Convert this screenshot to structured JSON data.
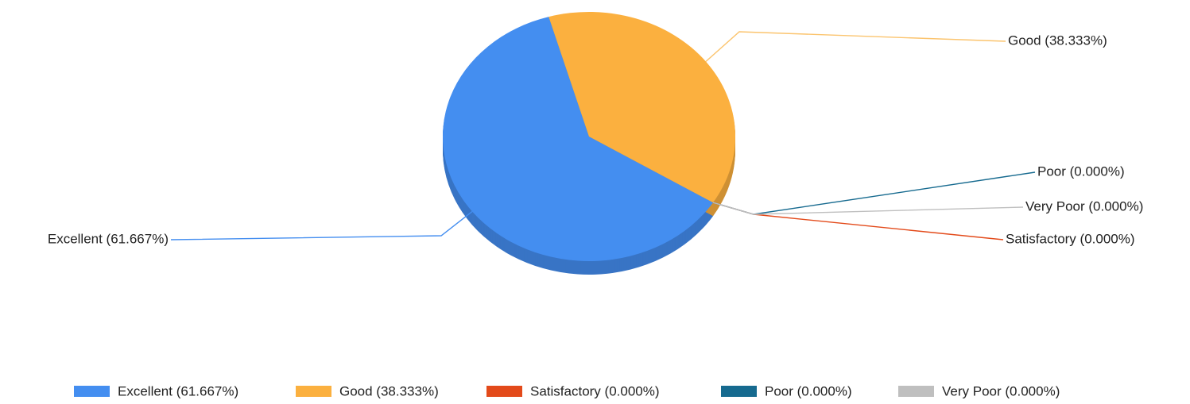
{
  "chart_data": {
    "type": "pie",
    "categories": [
      "Excellent (61.667%)",
      "Good (38.333%)",
      "Satisfactory (0.000%)",
      "Poor (0.000%)",
      "Very Poor (0.000%)"
    ],
    "values": [
      61.667,
      38.333,
      0,
      0,
      0
    ],
    "colors": [
      "#448ef0",
      "#fbb03f",
      "#e34a1a",
      "#166a8f",
      "#bfbfbf"
    ],
    "legend": "bottom"
  }
}
